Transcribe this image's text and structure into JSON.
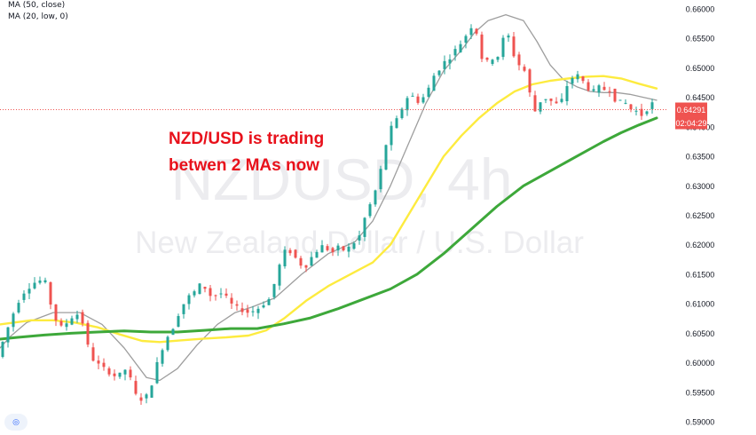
{
  "indicators": {
    "ma50": "MA (50, close)",
    "ma20": "MA (20, low, 0)"
  },
  "watermark": {
    "symbol": "NZDUSD, 4h",
    "name": "New Zealand Dollar / U.S. Dollar"
  },
  "annotation": [
    "NZD/USD is trading",
    "betwen 2 MAs now"
  ],
  "price_tag": {
    "price": "0.64291",
    "countdown": "02:04:29"
  },
  "colors": {
    "up": "#26a69a",
    "down": "#ef5350",
    "ma20": "#9e9e9e",
    "ma50": "#fdeb3f",
    "ma100": "#3da83a",
    "annotation": "#e8111b",
    "price_tag": "#ef5350"
  },
  "icons": {
    "logo": "tradingview-logo-icon"
  },
  "chart_data": {
    "type": "line",
    "title": "NZDUSD, 4h",
    "ylim": [
      0.5885,
      0.6615
    ],
    "y_ticks": [
      "0.66000",
      "0.65500",
      "0.65000",
      "0.64500",
      "0.64000",
      "0.63500",
      "0.63000",
      "0.62500",
      "0.62000",
      "0.61500",
      "0.61000",
      "0.60500",
      "0.60000",
      "0.59500",
      "0.59000"
    ],
    "current_price": 0.64291,
    "grid": false,
    "series": [
      {
        "name": "MA (20, low, 0)",
        "points": [
          [
            0,
            0.6025
          ],
          [
            12,
            0.6045
          ],
          [
            30,
            0.6068
          ],
          [
            60,
            0.6085
          ],
          [
            90,
            0.6085
          ],
          [
            115,
            0.6065
          ],
          [
            140,
            0.6025
          ],
          [
            165,
            0.5975
          ],
          [
            180,
            0.597
          ],
          [
            200,
            0.599
          ],
          [
            222,
            0.603
          ],
          [
            245,
            0.6065
          ],
          [
            265,
            0.6085
          ],
          [
            285,
            0.6095
          ],
          [
            310,
            0.611
          ],
          [
            340,
            0.615
          ],
          [
            370,
            0.6185
          ],
          [
            400,
            0.6205
          ],
          [
            420,
            0.624
          ],
          [
            440,
            0.63
          ],
          [
            460,
            0.637
          ],
          [
            480,
            0.644
          ],
          [
            500,
            0.6495
          ],
          [
            520,
            0.653
          ],
          [
            535,
            0.656
          ],
          [
            550,
            0.658
          ],
          [
            570,
            0.659
          ],
          [
            590,
            0.658
          ],
          [
            605,
            0.6545
          ],
          [
            620,
            0.6505
          ],
          [
            635,
            0.648
          ],
          [
            650,
            0.6468
          ],
          [
            665,
            0.646
          ],
          [
            680,
            0.6458
          ],
          [
            695,
            0.6458
          ],
          [
            710,
            0.6455
          ],
          [
            725,
            0.645
          ],
          [
            740,
            0.6445
          ]
        ]
      },
      {
        "name": "MA (50, close)",
        "points": [
          [
            0,
            0.6065
          ],
          [
            15,
            0.6068
          ],
          [
            35,
            0.6072
          ],
          [
            60,
            0.6072
          ],
          [
            85,
            0.6068
          ],
          [
            110,
            0.606
          ],
          [
            135,
            0.6048
          ],
          [
            160,
            0.6037
          ],
          [
            180,
            0.6035
          ],
          [
            205,
            0.6038
          ],
          [
            230,
            0.6041
          ],
          [
            255,
            0.6043
          ],
          [
            280,
            0.6046
          ],
          [
            300,
            0.6055
          ],
          [
            320,
            0.6075
          ],
          [
            345,
            0.6105
          ],
          [
            370,
            0.613
          ],
          [
            395,
            0.615
          ],
          [
            420,
            0.617
          ],
          [
            440,
            0.62
          ],
          [
            460,
            0.625
          ],
          [
            480,
            0.63
          ],
          [
            500,
            0.635
          ],
          [
            520,
            0.6385
          ],
          [
            540,
            0.6415
          ],
          [
            560,
            0.644
          ],
          [
            580,
            0.646
          ],
          [
            600,
            0.6472
          ],
          [
            620,
            0.6478
          ],
          [
            640,
            0.6482
          ],
          [
            660,
            0.6485
          ],
          [
            680,
            0.6486
          ],
          [
            700,
            0.6482
          ],
          [
            720,
            0.6473
          ],
          [
            740,
            0.6465
          ]
        ]
      },
      {
        "name": "MA (100)",
        "points": [
          [
            0,
            0.604
          ],
          [
            20,
            0.6043
          ],
          [
            50,
            0.6047
          ],
          [
            80,
            0.605
          ],
          [
            110,
            0.6052
          ],
          [
            140,
            0.6054
          ],
          [
            170,
            0.6052
          ],
          [
            200,
            0.6052
          ],
          [
            230,
            0.6055
          ],
          [
            260,
            0.6058
          ],
          [
            290,
            0.6058
          ],
          [
            320,
            0.6066
          ],
          [
            350,
            0.6076
          ],
          [
            380,
            0.6091
          ],
          [
            410,
            0.6108
          ],
          [
            440,
            0.6125
          ],
          [
            470,
            0.615
          ],
          [
            500,
            0.6185
          ],
          [
            530,
            0.6225
          ],
          [
            560,
            0.6265
          ],
          [
            590,
            0.63
          ],
          [
            620,
            0.6325
          ],
          [
            650,
            0.635
          ],
          [
            680,
            0.6375
          ],
          [
            700,
            0.639
          ],
          [
            720,
            0.6403
          ],
          [
            740,
            0.6415
          ]
        ]
      }
    ],
    "price_path": [
      [
        0,
        0.601
      ],
      [
        6,
        0.6035
      ],
      [
        12,
        0.606
      ],
      [
        22,
        0.61
      ],
      [
        30,
        0.612
      ],
      [
        40,
        0.6135
      ],
      [
        50,
        0.614
      ],
      [
        55,
        0.6135
      ],
      [
        60,
        0.61
      ],
      [
        65,
        0.6075
      ],
      [
        72,
        0.606
      ],
      [
        80,
        0.607
      ],
      [
        88,
        0.6085
      ],
      [
        95,
        0.6075
      ],
      [
        100,
        0.604
      ],
      [
        105,
        0.601
      ],
      [
        115,
        0.5995
      ],
      [
        125,
        0.5985
      ],
      [
        135,
        0.5975
      ],
      [
        145,
        0.599
      ],
      [
        152,
        0.5965
      ],
      [
        158,
        0.5935
      ],
      [
        164,
        0.594
      ],
      [
        170,
        0.5945
      ],
      [
        176,
        0.5975
      ],
      [
        182,
        0.601
      ],
      [
        190,
        0.604
      ],
      [
        198,
        0.606
      ],
      [
        206,
        0.609
      ],
      [
        214,
        0.611
      ],
      [
        222,
        0.612
      ],
      [
        230,
        0.6135
      ],
      [
        235,
        0.6125
      ],
      [
        242,
        0.611
      ],
      [
        250,
        0.612
      ],
      [
        258,
        0.611
      ],
      [
        266,
        0.6095
      ],
      [
        275,
        0.609
      ],
      [
        283,
        0.6085
      ],
      [
        292,
        0.609
      ],
      [
        300,
        0.61
      ],
      [
        308,
        0.611
      ],
      [
        314,
        0.6145
      ],
      [
        320,
        0.6175
      ],
      [
        326,
        0.6195
      ],
      [
        332,
        0.6185
      ],
      [
        340,
        0.617
      ],
      [
        346,
        0.616
      ],
      [
        352,
        0.6175
      ],
      [
        360,
        0.619
      ],
      [
        368,
        0.62
      ],
      [
        376,
        0.6185
      ],
      [
        384,
        0.6195
      ],
      [
        392,
        0.619
      ],
      [
        400,
        0.62
      ],
      [
        408,
        0.6215
      ],
      [
        415,
        0.625
      ],
      [
        422,
        0.6275
      ],
      [
        428,
        0.63
      ],
      [
        434,
        0.634
      ],
      [
        440,
        0.6385
      ],
      [
        446,
        0.6405
      ],
      [
        452,
        0.6415
      ],
      [
        458,
        0.644
      ],
      [
        464,
        0.6455
      ],
      [
        470,
        0.645
      ],
      [
        476,
        0.644
      ],
      [
        482,
        0.6455
      ],
      [
        488,
        0.647
      ],
      [
        494,
        0.6495
      ],
      [
        500,
        0.65
      ],
      [
        506,
        0.6515
      ],
      [
        512,
        0.652
      ],
      [
        518,
        0.6535
      ],
      [
        524,
        0.6545
      ],
      [
        530,
        0.656
      ],
      [
        536,
        0.6575
      ],
      [
        540,
        0.656
      ],
      [
        545,
        0.652
      ],
      [
        550,
        0.6505
      ],
      [
        556,
        0.652
      ],
      [
        562,
        0.651
      ],
      [
        568,
        0.654
      ],
      [
        574,
        0.6565
      ],
      [
        580,
        0.653
      ],
      [
        586,
        0.6505
      ],
      [
        592,
        0.6505
      ],
      [
        598,
        0.6475
      ],
      [
        604,
        0.642
      ],
      [
        610,
        0.644
      ],
      [
        616,
        0.645
      ],
      [
        622,
        0.6445
      ],
      [
        628,
        0.644
      ],
      [
        634,
        0.6435
      ],
      [
        640,
        0.6465
      ],
      [
        646,
        0.648
      ],
      [
        652,
        0.649
      ],
      [
        658,
        0.648
      ],
      [
        664,
        0.647
      ],
      [
        670,
        0.6455
      ],
      [
        676,
        0.647
      ],
      [
        682,
        0.646
      ],
      [
        688,
        0.647
      ],
      [
        694,
        0.645
      ],
      [
        700,
        0.644
      ],
      [
        706,
        0.6445
      ],
      [
        712,
        0.643
      ],
      [
        718,
        0.643
      ],
      [
        724,
        0.642
      ],
      [
        730,
        0.642
      ],
      [
        736,
        0.645
      ],
      [
        740,
        0.6429
      ]
    ]
  }
}
